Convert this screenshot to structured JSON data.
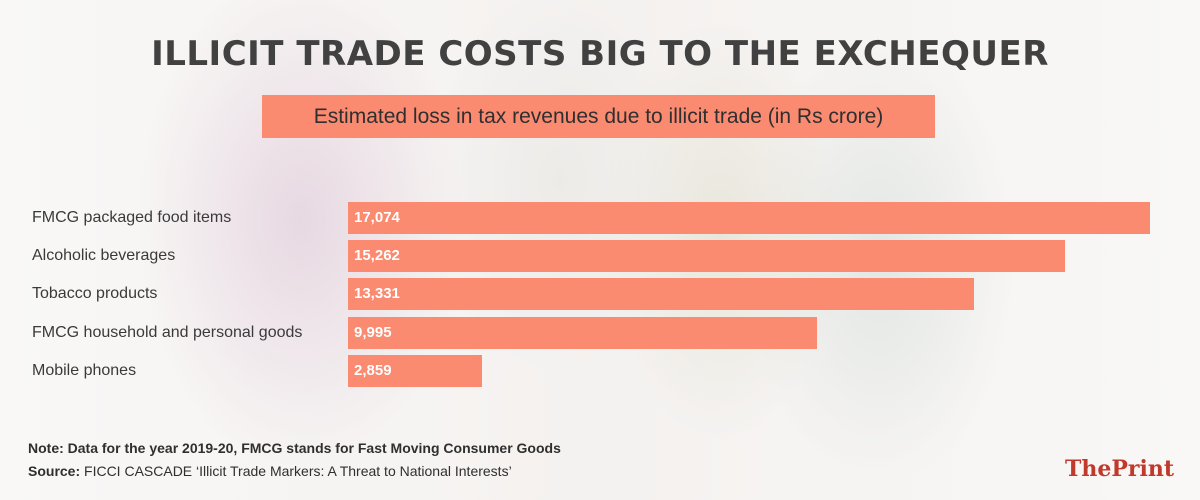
{
  "header": {
    "title": "ILLICIT TRADE COSTS BIG TO THE EXCHEQUER",
    "subtitle": "Estimated loss in tax revenues due to illicit trade (in Rs crore)"
  },
  "chart_data": {
    "type": "bar",
    "orientation": "horizontal",
    "title": "ILLICIT TRADE COSTS BIG TO THE EXCHEQUER",
    "subtitle": "Estimated loss in tax revenues due to illicit trade (in Rs crore)",
    "categories": [
      "FMCG packaged food items",
      "Alcoholic beverages",
      "Tobacco products",
      "FMCG household and personal goods",
      "Mobile phones"
    ],
    "values": [
      17074,
      15262,
      13331,
      9995,
      2859
    ],
    "value_labels": [
      "17,074",
      "15,262",
      "13,331",
      "9,995",
      "2,859"
    ],
    "xlim": [
      0,
      17074
    ],
    "grid": false,
    "legend": "none",
    "bar_color": "#fa8a70"
  },
  "footer": {
    "note": "Note: Data for the year 2019-20, FMCG stands for Fast Moving Consumer Goods",
    "source_label": "Source:",
    "source_text": " FICCI CASCADE ‘Illicit Trade Markers: A Threat to National Interests’",
    "logo_the": "The",
    "logo_print": "Print"
  }
}
